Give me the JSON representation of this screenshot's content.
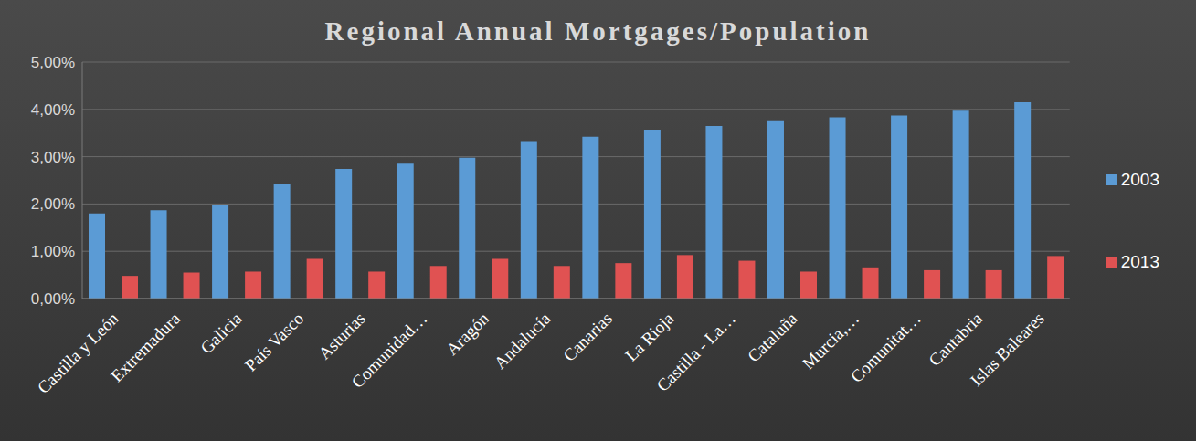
{
  "chart_data": {
    "type": "bar",
    "title": "Regional Annual Mortgages/Population",
    "categories": [
      "Castilla y León",
      "Extremadura",
      "Galicia",
      "País Vasco",
      "Asturias",
      "Comunidad…",
      "Aragón",
      "Andalucía",
      "Canarias",
      "La Rioja",
      "Castilla - La…",
      "Cataluña",
      "Murcia,…",
      "Comunitat…",
      "Cantabria",
      "Islas Baleares"
    ],
    "series": [
      {
        "name": "2003",
        "color": "#5b9bd5",
        "values": [
          1.8,
          1.87,
          1.98,
          2.42,
          2.74,
          2.85,
          2.98,
          3.33,
          3.42,
          3.57,
          3.65,
          3.77,
          3.83,
          3.87,
          3.97,
          4.15
        ]
      },
      {
        "name": "2013",
        "color": "#e05252",
        "values": [
          0.48,
          0.55,
          0.57,
          0.84,
          0.57,
          0.69,
          0.84,
          0.69,
          0.75,
          0.92,
          0.8,
          0.57,
          0.66,
          0.6,
          0.6,
          0.9
        ]
      }
    ],
    "ylim": [
      0,
      5
    ],
    "yticks": [
      {
        "value": 0,
        "label": "0,00%"
      },
      {
        "value": 1,
        "label": "1,00%"
      },
      {
        "value": 2,
        "label": "2,00%"
      },
      {
        "value": 3,
        "label": "3,00%"
      },
      {
        "value": 4,
        "label": "4,00%"
      },
      {
        "value": 5,
        "label": "5,00%"
      }
    ],
    "grid": true,
    "legend": "right"
  }
}
